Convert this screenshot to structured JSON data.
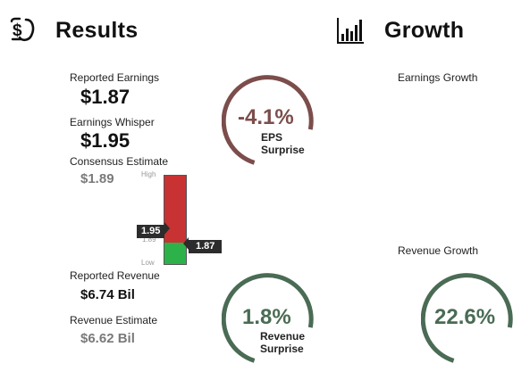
{
  "results": {
    "title": "Results",
    "reported_earnings": {
      "label": "Reported Earnings",
      "value": "$1.87"
    },
    "earnings_whisper": {
      "label": "Earnings Whisper",
      "value": "$1.95"
    },
    "consensus_estimate": {
      "label": "Consensus Estimate",
      "value": "$1.89"
    },
    "reported_revenue": {
      "label": "Reported Revenue",
      "value": "$6.74 Bil"
    },
    "revenue_estimate": {
      "label": "Revenue Estimate",
      "value": "$6.62 Bil"
    }
  },
  "range_bar": {
    "high_label": "High",
    "low_label": "Low",
    "consensus_tick": "1.89",
    "whisper_tag": "1.95",
    "actual_tag": "1.87",
    "actual_fraction": 0.24,
    "colors": {
      "miss": "#c83232",
      "beat": "#2db24a"
    }
  },
  "eps_gauge": {
    "percent": "-4.1%",
    "line1": "EPS",
    "line2": "Surprise",
    "color": "#7b4d4b"
  },
  "revenue_gauge": {
    "percent": "1.8%",
    "line1": "Revenue",
    "line2": "Surprise",
    "color": "#4a6b54"
  },
  "growth": {
    "title": "Growth",
    "earnings_growth_label": "Earnings Growth",
    "revenue_growth_label": "Revenue Growth",
    "revenue_growth_gauge": {
      "percent": "22.6%",
      "color": "#4a6b54"
    }
  },
  "icons": {
    "results": "money-hand-icon",
    "growth": "bar-chart-icon"
  }
}
